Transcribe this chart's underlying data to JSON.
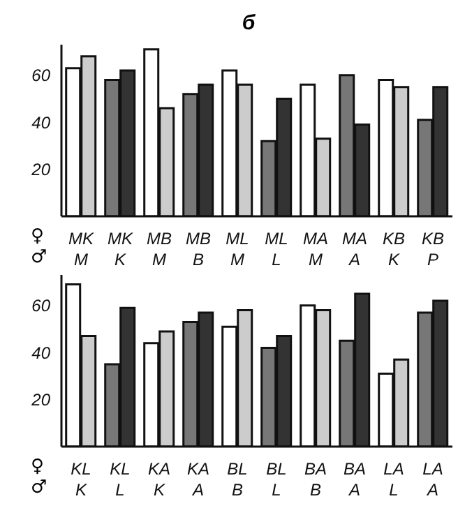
{
  "chart_data": [
    {
      "type": "bar",
      "title": "б",
      "categories": [
        "MK\nM",
        "MK\nK",
        "MB\nM",
        "MB\nB",
        "ML\nM",
        "ML\nL",
        "MA\nM",
        "MA\nA",
        "KB\nK",
        "KB\nP"
      ],
      "ylim": [
        0,
        73
      ],
      "yticks": [
        20,
        40,
        60
      ],
      "annotations": [
        "♀",
        "♂"
      ],
      "series": [
        {
          "colors": [
            "#ffffff",
            "#777777",
            "#ffffff",
            "#777777",
            "#ffffff",
            "#777777",
            "#ffffff",
            "#777777",
            "#ffffff",
            "#777777"
          ],
          "values": [
            63,
            58,
            71,
            52,
            62,
            32,
            56,
            60,
            58,
            41
          ]
        },
        {
          "colors": [
            "#cccccc",
            "#333333",
            "#cccccc",
            "#333333",
            "#cccccc",
            "#333333",
            "#cccccc",
            "#333333",
            "#cccccc",
            "#333333"
          ],
          "values": [
            68,
            62,
            46,
            56,
            56,
            50,
            33,
            39,
            55,
            55
          ]
        }
      ]
    },
    {
      "type": "bar",
      "categories": [
        "KL\nK",
        "KL\nL",
        "KA\nK",
        "KA\nA",
        "BL\nB",
        "BL\nL",
        "BA\nB",
        "BA\nA",
        "LA\nL",
        "LA\nA"
      ],
      "ylim": [
        0,
        73
      ],
      "yticks": [
        20,
        40,
        60
      ],
      "annotations": [
        "♀",
        "♂"
      ],
      "series": [
        {
          "colors": [
            "#ffffff",
            "#777777",
            "#ffffff",
            "#777777",
            "#ffffff",
            "#777777",
            "#ffffff",
            "#777777",
            "#ffffff",
            "#777777"
          ],
          "values": [
            69,
            35,
            44,
            53,
            51,
            42,
            60,
            45,
            31,
            57
          ]
        },
        {
          "colors": [
            "#cccccc",
            "#333333",
            "#cccccc",
            "#333333",
            "#cccccc",
            "#333333",
            "#cccccc",
            "#333333",
            "#cccccc",
            "#333333"
          ],
          "values": [
            47,
            59,
            49,
            57,
            58,
            47,
            58,
            65,
            37,
            62
          ]
        }
      ]
    }
  ]
}
